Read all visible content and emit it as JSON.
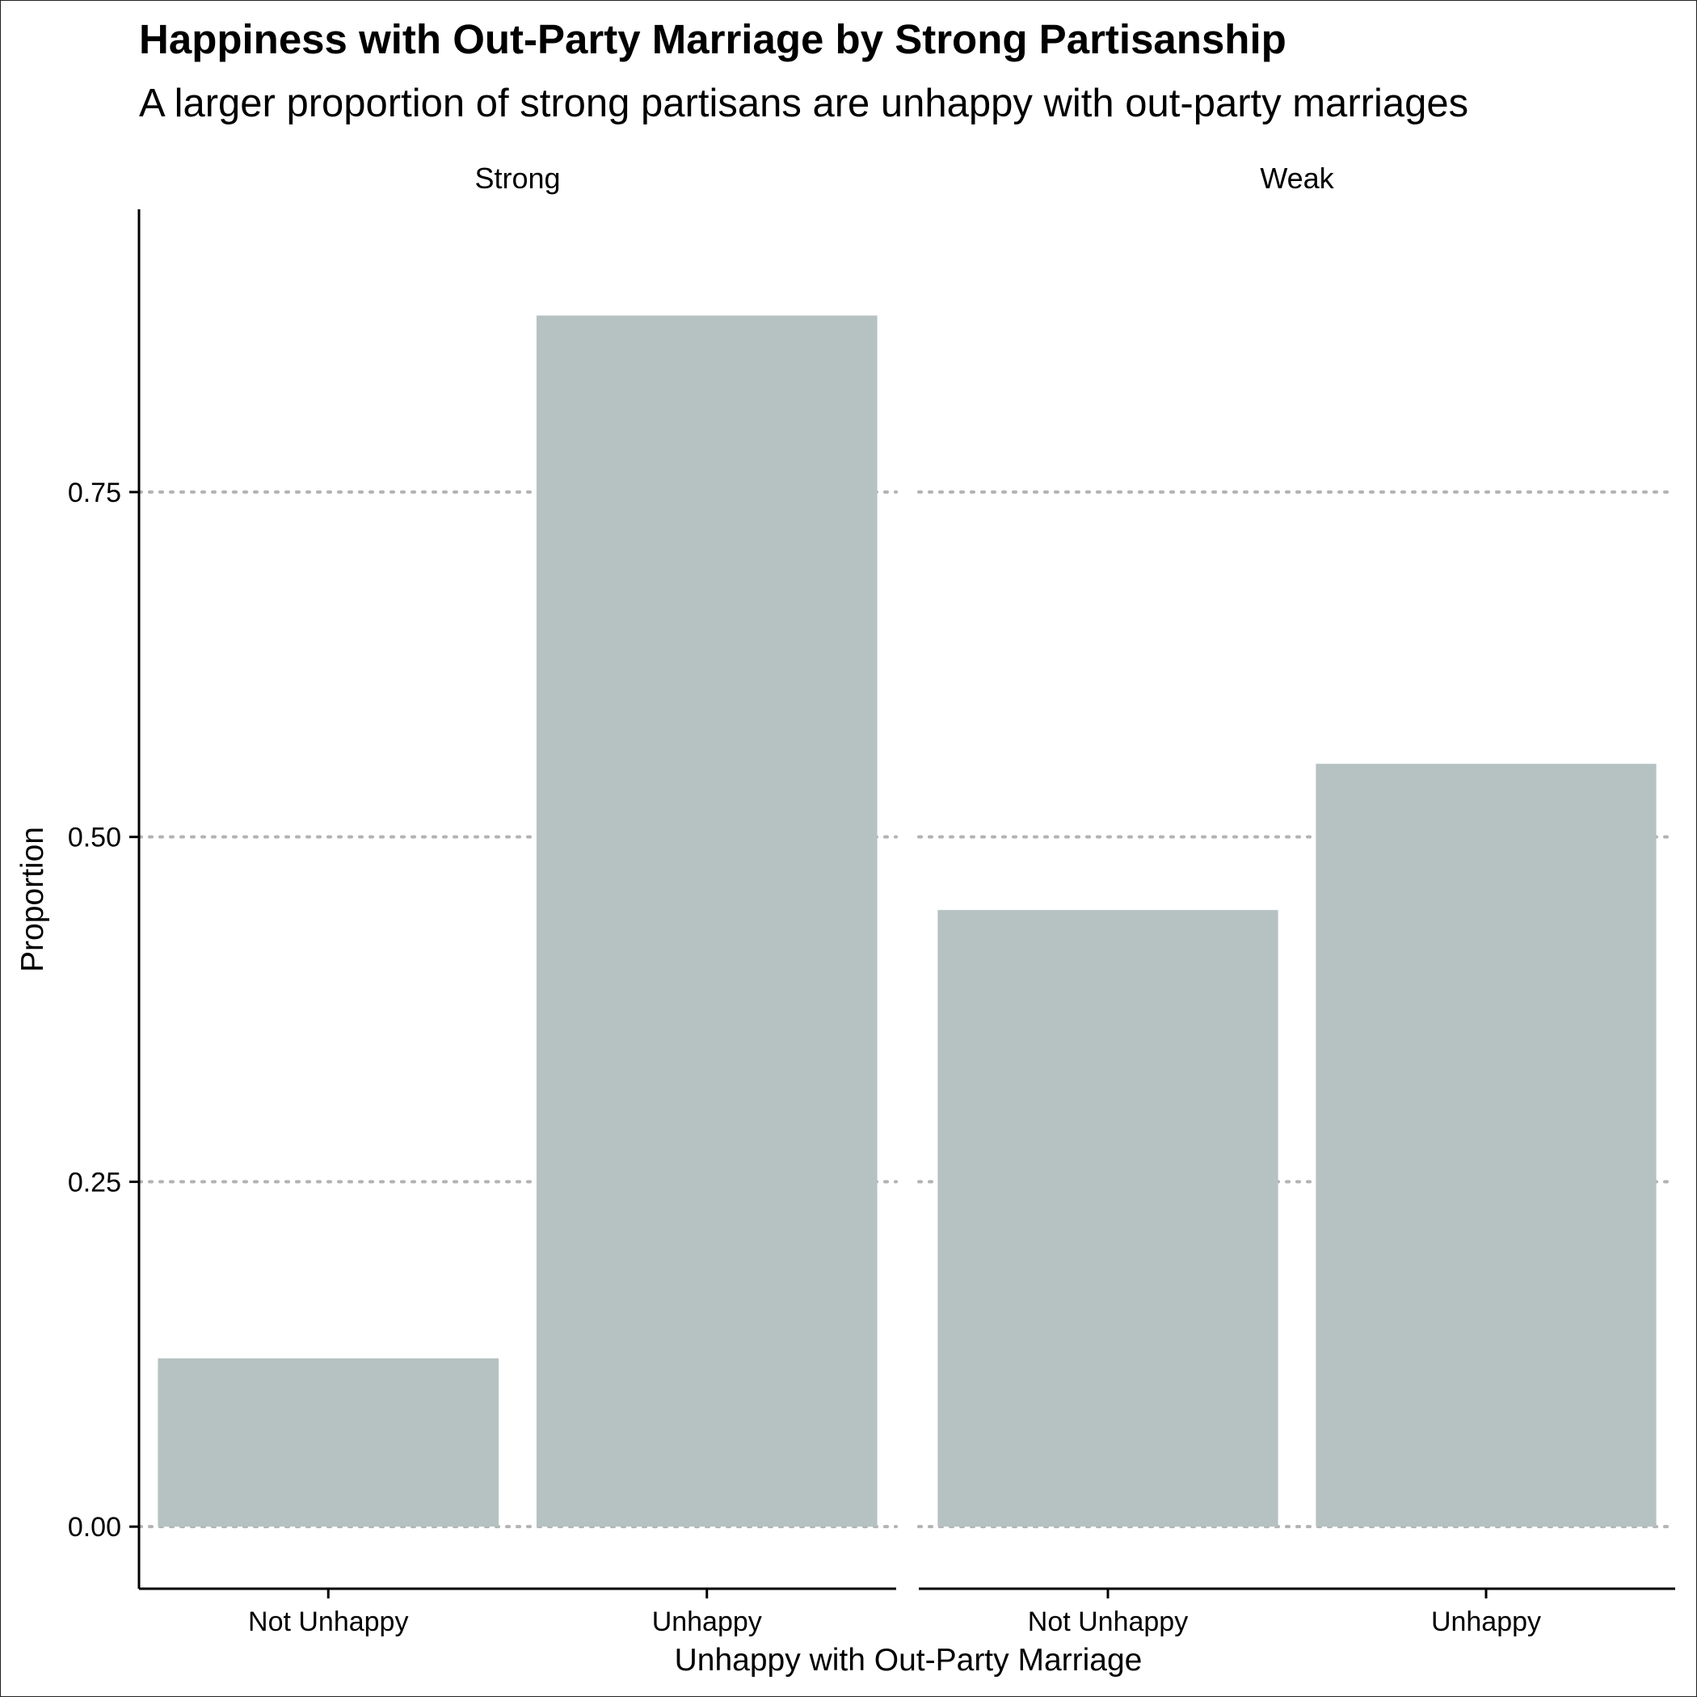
{
  "title": "Happiness with Out-Party Marriage by Strong Partisanship",
  "subtitle": "A larger proportion of strong partisans are unhappy with out-party marriages",
  "colors": {
    "bar": "#b5c2c1",
    "grid": "#b3b3b3",
    "axis": "#000000",
    "background": "#ffffff"
  },
  "chart_data": {
    "type": "bar",
    "title": "Happiness with Out-Party Marriage by Strong Partisanship",
    "subtitle": "A larger proportion of strong partisans are unhappy with out-party marriages",
    "xlabel": "Unhappy with Out-Party Marriage",
    "ylabel": "Proportion",
    "ylim": [
      -0.045,
      0.955
    ],
    "yticks": [
      "0.00",
      "0.25",
      "0.50",
      "0.75"
    ],
    "grid": "horizontal dotted",
    "categories": [
      "Not Unhappy",
      "Unhappy"
    ],
    "facets": [
      {
        "name": "Strong",
        "values": [
          0.122,
          0.878
        ]
      },
      {
        "name": "Weak",
        "values": [
          0.447,
          0.553
        ]
      }
    ]
  }
}
